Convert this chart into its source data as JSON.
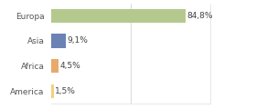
{
  "categories": [
    "Europa",
    "Asia",
    "Africa",
    "America"
  ],
  "values": [
    84.8,
    9.1,
    4.5,
    1.5
  ],
  "labels": [
    "84,8%",
    "9,1%",
    "4,5%",
    "1,5%"
  ],
  "bar_colors": [
    "#b5c98e",
    "#6b82b5",
    "#e8a96b",
    "#f0d080"
  ],
  "background_color": "#ffffff",
  "vline_x": 50,
  "xlim": [
    0,
    100
  ],
  "label_fontsize": 6.5,
  "tick_fontsize": 6.5,
  "bar_height": 0.55
}
